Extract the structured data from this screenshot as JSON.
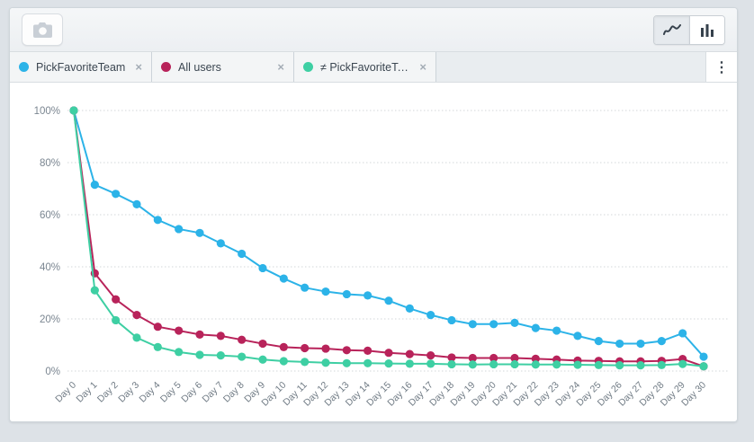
{
  "toolbar": {
    "camera_button_tooltip": "snapshot",
    "chart_type_toggle": {
      "selected": "line",
      "options": [
        "line",
        "bar"
      ]
    }
  },
  "chips": [
    {
      "label": "PickFavoriteTeam",
      "color": "#2cb3e8",
      "close": "×"
    },
    {
      "label": "All users",
      "color": "#b8235a",
      "close": "×"
    },
    {
      "label": "≠ PickFavoriteTeam…",
      "color": "#3ecfa3",
      "close": "×"
    }
  ],
  "menu": {
    "kebab": "⋮"
  },
  "chart_data": {
    "type": "line",
    "title": "",
    "xlabel": "",
    "ylabel": "",
    "ylim": [
      0,
      100
    ],
    "y_ticks": {
      "values": [
        0,
        20,
        40,
        60,
        80,
        100
      ],
      "labels": [
        "0%",
        "20%",
        "40%",
        "60%",
        "80%",
        "100%"
      ]
    },
    "grid": "horizontal-dotted",
    "legend_position": "top-chips",
    "x": [
      "Day 0",
      "Day 1",
      "Day 2",
      "Day 3",
      "Day 4",
      "Day 5",
      "Day 6",
      "Day 7",
      "Day 8",
      "Day 9",
      "Day 10",
      "Day 11",
      "Day 12",
      "Day 13",
      "Day 14",
      "Day 15",
      "Day 16",
      "Day 17",
      "Day 18",
      "Day 19",
      "Day 20",
      "Day 21",
      "Day 22",
      "Day 23",
      "Day 24",
      "Day 25",
      "Day 26",
      "Day 27",
      "Day 28",
      "Day 29",
      "Day 30"
    ],
    "series": [
      {
        "name": "PickFavoriteTeam",
        "color": "#2cb3e8",
        "values": [
          100,
          71.5,
          68,
          64,
          58,
          54.5,
          53,
          49,
          45,
          39.5,
          35.5,
          32,
          30.5,
          29.5,
          29,
          27,
          24,
          21.5,
          19.5,
          18,
          18,
          18.5,
          16.5,
          15.5,
          13.5,
          11.5,
          10.5,
          10.5,
          11.5,
          14.5,
          5.5
        ]
      },
      {
        "name": "All users",
        "color": "#b8235a",
        "values": [
          100,
          37.5,
          27.5,
          21.5,
          17,
          15.5,
          14,
          13.5,
          12,
          10.5,
          9.2,
          8.8,
          8.6,
          8,
          7.8,
          7,
          6.5,
          6,
          5.2,
          5,
          5,
          5,
          4.7,
          4.4,
          4,
          3.9,
          3.7,
          3.7,
          3.9,
          4.6,
          1.8
        ]
      },
      {
        "name": "≠ PickFavoriteTeam…",
        "color": "#3ecfa3",
        "values": [
          100,
          31,
          19.5,
          12.8,
          9.2,
          7.3,
          6.2,
          6,
          5.5,
          4.4,
          3.8,
          3.5,
          3.2,
          3,
          3,
          2.9,
          2.8,
          2.8,
          2.6,
          2.5,
          2.6,
          2.6,
          2.5,
          2.5,
          2.4,
          2.3,
          2.2,
          2.2,
          2.3,
          2.7,
          1.8
        ]
      }
    ]
  },
  "chart_colors": {
    "grid": "#d3d7da",
    "y_label": "#7b8691",
    "x_label": "#6f7a84"
  }
}
